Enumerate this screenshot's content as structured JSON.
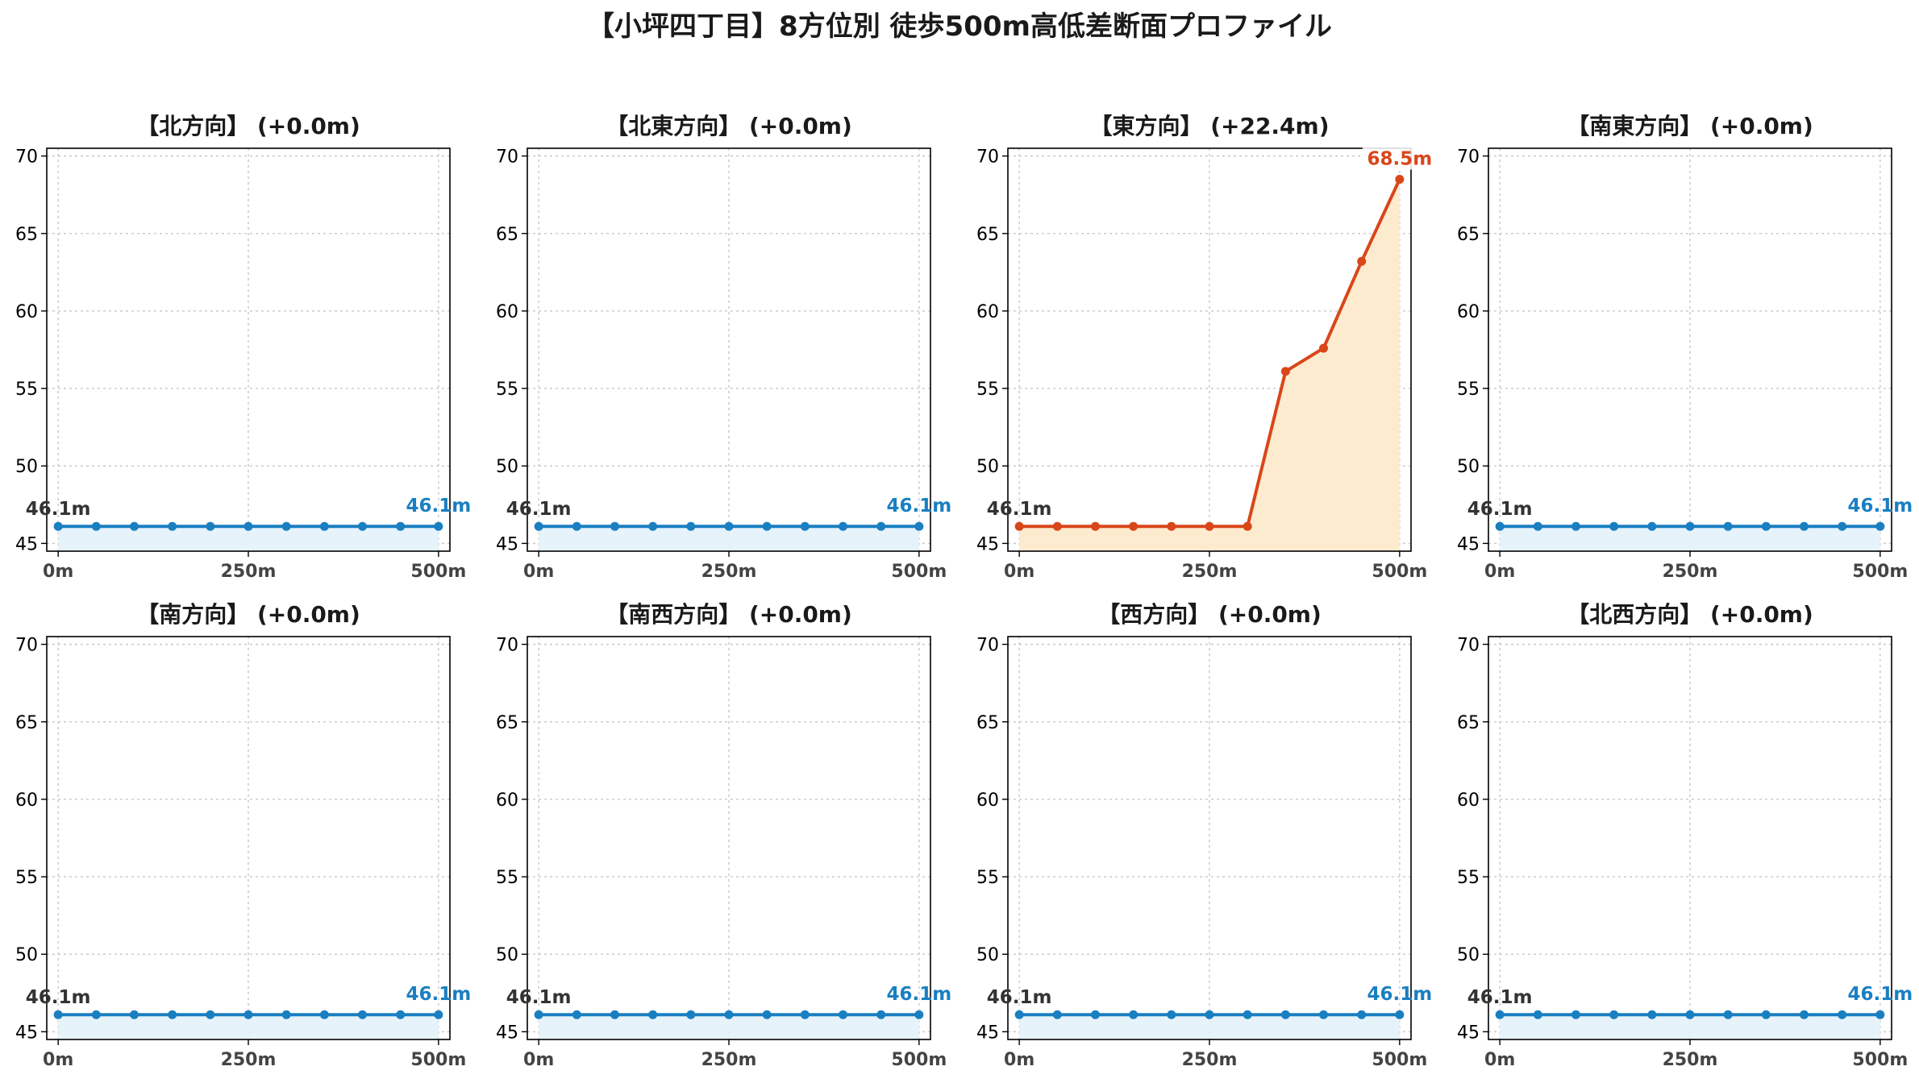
{
  "figure_title": "【小坪四丁目】8方位別 徒歩500m高低差断面プロファイル",
  "colors": {
    "flat_line": "#1a7fc1",
    "flat_fill": "#e3f2fb",
    "rise_line": "#d9461a",
    "rise_fill": "#fdebd0",
    "start_label": "#333333",
    "grid": "#c8c8c8",
    "axis": "#000000"
  },
  "chart_data": [
    {
      "type": "area",
      "title": "【北方向】 (+0.0m)",
      "x_ticks": [
        "0m",
        "250m",
        "500m"
      ],
      "y_ticks": [
        "45",
        "50",
        "55",
        "60",
        "65",
        "70"
      ],
      "ylim": [
        44.5,
        70.5
      ],
      "grid": true,
      "series": [
        {
          "x": [
            0,
            50,
            100,
            150,
            200,
            250,
            300,
            350,
            400,
            450,
            500
          ],
          "y": [
            46.1,
            46.1,
            46.1,
            46.1,
            46.1,
            46.1,
            46.1,
            46.1,
            46.1,
            46.1,
            46.1
          ]
        }
      ],
      "start_label": "46.1m",
      "end_label": "46.1m",
      "trend": "flat"
    },
    {
      "type": "area",
      "title": "【北東方向】 (+0.0m)",
      "x_ticks": [
        "0m",
        "250m",
        "500m"
      ],
      "y_ticks": [
        "45",
        "50",
        "55",
        "60",
        "65",
        "70"
      ],
      "ylim": [
        44.5,
        70.5
      ],
      "grid": true,
      "series": [
        {
          "x": [
            0,
            50,
            100,
            150,
            200,
            250,
            300,
            350,
            400,
            450,
            500
          ],
          "y": [
            46.1,
            46.1,
            46.1,
            46.1,
            46.1,
            46.1,
            46.1,
            46.1,
            46.1,
            46.1,
            46.1
          ]
        }
      ],
      "start_label": "46.1m",
      "end_label": "46.1m",
      "trend": "flat"
    },
    {
      "type": "area",
      "title": "【東方向】 (+22.4m)",
      "x_ticks": [
        "0m",
        "250m",
        "500m"
      ],
      "y_ticks": [
        "45",
        "50",
        "55",
        "60",
        "65",
        "70"
      ],
      "ylim": [
        44.5,
        70.5
      ],
      "grid": true,
      "series": [
        {
          "x": [
            0,
            50,
            100,
            150,
            200,
            250,
            300,
            350,
            400,
            450,
            500
          ],
          "y": [
            46.1,
            46.1,
            46.1,
            46.1,
            46.1,
            46.1,
            46.1,
            56.1,
            57.6,
            63.2,
            68.5
          ]
        }
      ],
      "start_label": "46.1m",
      "end_label": "68.5m",
      "trend": "rise"
    },
    {
      "type": "area",
      "title": "【南東方向】 (+0.0m)",
      "x_ticks": [
        "0m",
        "250m",
        "500m"
      ],
      "y_ticks": [
        "45",
        "50",
        "55",
        "60",
        "65",
        "70"
      ],
      "ylim": [
        44.5,
        70.5
      ],
      "grid": true,
      "series": [
        {
          "x": [
            0,
            50,
            100,
            150,
            200,
            250,
            300,
            350,
            400,
            450,
            500
          ],
          "y": [
            46.1,
            46.1,
            46.1,
            46.1,
            46.1,
            46.1,
            46.1,
            46.1,
            46.1,
            46.1,
            46.1
          ]
        }
      ],
      "start_label": "46.1m",
      "end_label": "46.1m",
      "trend": "flat"
    },
    {
      "type": "area",
      "title": "【南方向】 (+0.0m)",
      "x_ticks": [
        "0m",
        "250m",
        "500m"
      ],
      "y_ticks": [
        "45",
        "50",
        "55",
        "60",
        "65",
        "70"
      ],
      "ylim": [
        44.5,
        70.5
      ],
      "grid": true,
      "series": [
        {
          "x": [
            0,
            50,
            100,
            150,
            200,
            250,
            300,
            350,
            400,
            450,
            500
          ],
          "y": [
            46.1,
            46.1,
            46.1,
            46.1,
            46.1,
            46.1,
            46.1,
            46.1,
            46.1,
            46.1,
            46.1
          ]
        }
      ],
      "start_label": "46.1m",
      "end_label": "46.1m",
      "trend": "flat"
    },
    {
      "type": "area",
      "title": "【南西方向】 (+0.0m)",
      "x_ticks": [
        "0m",
        "250m",
        "500m"
      ],
      "y_ticks": [
        "45",
        "50",
        "55",
        "60",
        "65",
        "70"
      ],
      "ylim": [
        44.5,
        70.5
      ],
      "grid": true,
      "series": [
        {
          "x": [
            0,
            50,
            100,
            150,
            200,
            250,
            300,
            350,
            400,
            450,
            500
          ],
          "y": [
            46.1,
            46.1,
            46.1,
            46.1,
            46.1,
            46.1,
            46.1,
            46.1,
            46.1,
            46.1,
            46.1
          ]
        }
      ],
      "start_label": "46.1m",
      "end_label": "46.1m",
      "trend": "flat"
    },
    {
      "type": "area",
      "title": "【西方向】 (+0.0m)",
      "x_ticks": [
        "0m",
        "250m",
        "500m"
      ],
      "y_ticks": [
        "45",
        "50",
        "55",
        "60",
        "65",
        "70"
      ],
      "ylim": [
        44.5,
        70.5
      ],
      "grid": true,
      "series": [
        {
          "x": [
            0,
            50,
            100,
            150,
            200,
            250,
            300,
            350,
            400,
            450,
            500
          ],
          "y": [
            46.1,
            46.1,
            46.1,
            46.1,
            46.1,
            46.1,
            46.1,
            46.1,
            46.1,
            46.1,
            46.1
          ]
        }
      ],
      "start_label": "46.1m",
      "end_label": "46.1m",
      "trend": "flat"
    },
    {
      "type": "area",
      "title": "【北西方向】 (+0.0m)",
      "x_ticks": [
        "0m",
        "250m",
        "500m"
      ],
      "y_ticks": [
        "45",
        "50",
        "55",
        "60",
        "65",
        "70"
      ],
      "ylim": [
        44.5,
        70.5
      ],
      "grid": true,
      "series": [
        {
          "x": [
            0,
            50,
            100,
            150,
            200,
            250,
            300,
            350,
            400,
            450,
            500
          ],
          "y": [
            46.1,
            46.1,
            46.1,
            46.1,
            46.1,
            46.1,
            46.1,
            46.1,
            46.1,
            46.1,
            46.1
          ]
        }
      ],
      "start_label": "46.1m",
      "end_label": "46.1m",
      "trend": "flat"
    }
  ]
}
